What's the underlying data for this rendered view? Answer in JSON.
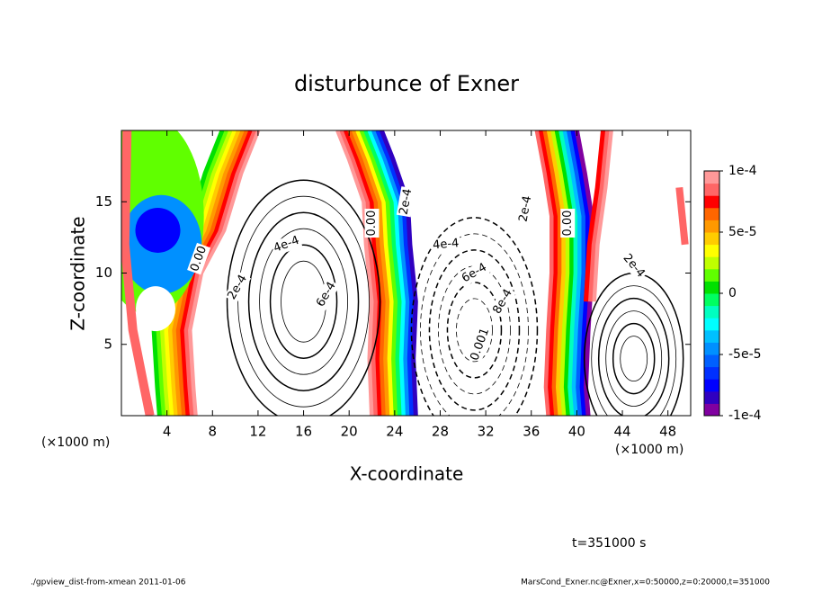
{
  "chart_data": {
    "type": "contour",
    "title": "disturbunce of Exner",
    "x_label": "X-coordinate",
    "y_label": "Z-coordinate",
    "x_unit": "(×1000 m)",
    "xlim": [
      0,
      50
    ],
    "ylim": [
      0,
      20
    ],
    "xticks": [
      4,
      8,
      12,
      16,
      20,
      24,
      28,
      32,
      36,
      40,
      44,
      48
    ],
    "yticks": [
      5,
      10,
      15
    ],
    "colorbar": {
      "lim": [
        -0.0001,
        0.0001
      ],
      "ticks": [
        {
          "value": 0.0001,
          "label": "1e-4"
        },
        {
          "value": 5e-05,
          "label": "5e-5"
        },
        0,
        {
          "value": -5e-05,
          "label": "-5e-5"
        },
        {
          "value": -0.0001,
          "label": "-1e-4"
        }
      ],
      "colors": [
        "#8000a0",
        "#3000c0",
        "#0000ff",
        "#0030ff",
        "#0060ff",
        "#0090ff",
        "#00c0ff",
        "#00ffff",
        "#00ffc0",
        "#00ff60",
        "#00e000",
        "#60ff00",
        "#c0ff00",
        "#ffff00",
        "#ffcc00",
        "#ff9900",
        "#ff6600",
        "#ff0000",
        "#ff6666",
        "#ff9999"
      ]
    },
    "contour_labels": [
      "0.00",
      "2e-4",
      "4e-4",
      "6e-4",
      "0.00",
      "2e-4",
      "4e-4",
      "6e-4",
      "8e-4",
      "0.001",
      "2e-4",
      "0.00",
      "2e-4"
    ],
    "time_label": "t=351000 s",
    "footer_left": "./gpview_dist-from-xmean  2011-01-06",
    "footer_right": "MarsCond_Exner.nc@Exner,x=0:50000,z=0:20000,t=351000"
  }
}
